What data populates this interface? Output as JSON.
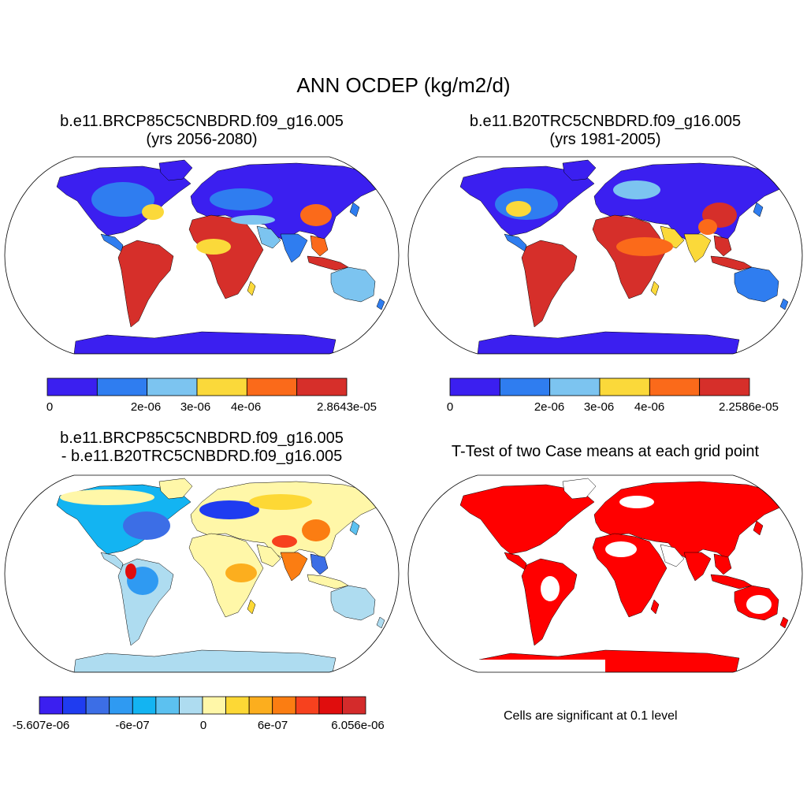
{
  "main_title": "ANN OCDEP (kg/m2/d)",
  "panels": [
    {
      "title_line1": "b.e11.BRCP85C5CNBDRD.f09_g16.005",
      "title_line2": "(yrs 2056-2080)",
      "colorbar": {
        "colors": [
          "#3b1ff0",
          "#2f7df0",
          "#7cc4f0",
          "#fbd93a",
          "#fb6a1a",
          "#d62f2a"
        ],
        "labels": [
          "0",
          "2e-06",
          "3e-06",
          "4e-06",
          "2.8643e-05"
        ]
      }
    },
    {
      "title_line1": "b.e11.B20TRC5CNBDRD.f09_g16.005",
      "title_line2": "(yrs 1981-2005)",
      "colorbar": {
        "colors": [
          "#3b1ff0",
          "#2f7df0",
          "#7cc4f0",
          "#fbd93a",
          "#fb6a1a",
          "#d62f2a"
        ],
        "labels": [
          "0",
          "2e-06",
          "3e-06",
          "4e-06",
          "2.2586e-05"
        ]
      }
    },
    {
      "title_line1": "b.e11.BRCP85C5CNBDRD.f09_g16.005",
      "title_line2": "- b.e11.B20TRC5CNBDRD.f09_g16.005",
      "colorbar": {
        "colors": [
          "#3b1ff0",
          "#1f3cf0",
          "#3c6ee6",
          "#2f9af2",
          "#13b4f2",
          "#5cc1f0",
          "#aedcf0",
          "#fff7a8",
          "#fdd835",
          "#fcae1e",
          "#fb7d12",
          "#f7411e",
          "#e00d0d",
          "#d42b2b"
        ],
        "labels": [
          "-5.607e-06",
          "-6e-07",
          "0",
          "6e-07",
          "6.056e-06"
        ]
      }
    },
    {
      "title_line1": "T-Test of two Case means at each grid point",
      "note": "Cells are significant at 0.1 level",
      "significant_color": "#ff0000"
    }
  ]
}
